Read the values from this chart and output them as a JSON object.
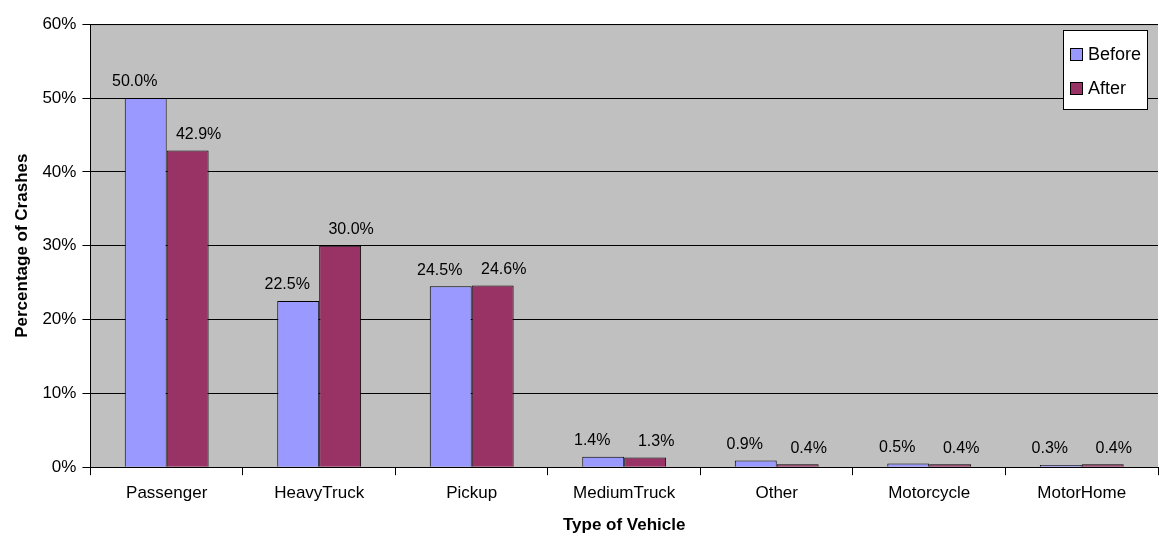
{
  "chart_data": {
    "type": "bar",
    "xlabel": "Type of Vehicle",
    "ylabel": "Percentage of Crashes",
    "categories": [
      "Passenger",
      "HeavyTruck",
      "Pickup",
      "MediumTruck",
      "Other",
      "Motorcycle",
      "MotorHome"
    ],
    "series": [
      {
        "name": "Before",
        "color": "#9999ff",
        "values": [
          50.0,
          22.5,
          24.5,
          1.4,
          0.9,
          0.5,
          0.3
        ],
        "value_labels": [
          "50.0%",
          "22.5%",
          "24.5%",
          "1.4%",
          "0.9%",
          "0.5%",
          "0.3%"
        ]
      },
      {
        "name": "After",
        "color": "#993366",
        "values": [
          42.9,
          30.0,
          24.6,
          1.3,
          0.4,
          0.4,
          0.4
        ],
        "value_labels": [
          "42.9%",
          "30.0%",
          "24.6%",
          "1.3%",
          "0.4%",
          "0.4%",
          "0.4%"
        ]
      }
    ],
    "ylim": [
      0,
      60
    ],
    "yticks": [
      {
        "value": 0,
        "label": "0%"
      },
      {
        "value": 10,
        "label": "10%"
      },
      {
        "value": 20,
        "label": "20%"
      },
      {
        "value": 30,
        "label": "30%"
      },
      {
        "value": 40,
        "label": "40%"
      },
      {
        "value": 50,
        "label": "50%"
      },
      {
        "value": 60,
        "label": "60%"
      }
    ],
    "grid": "y",
    "legend": "top right"
  }
}
